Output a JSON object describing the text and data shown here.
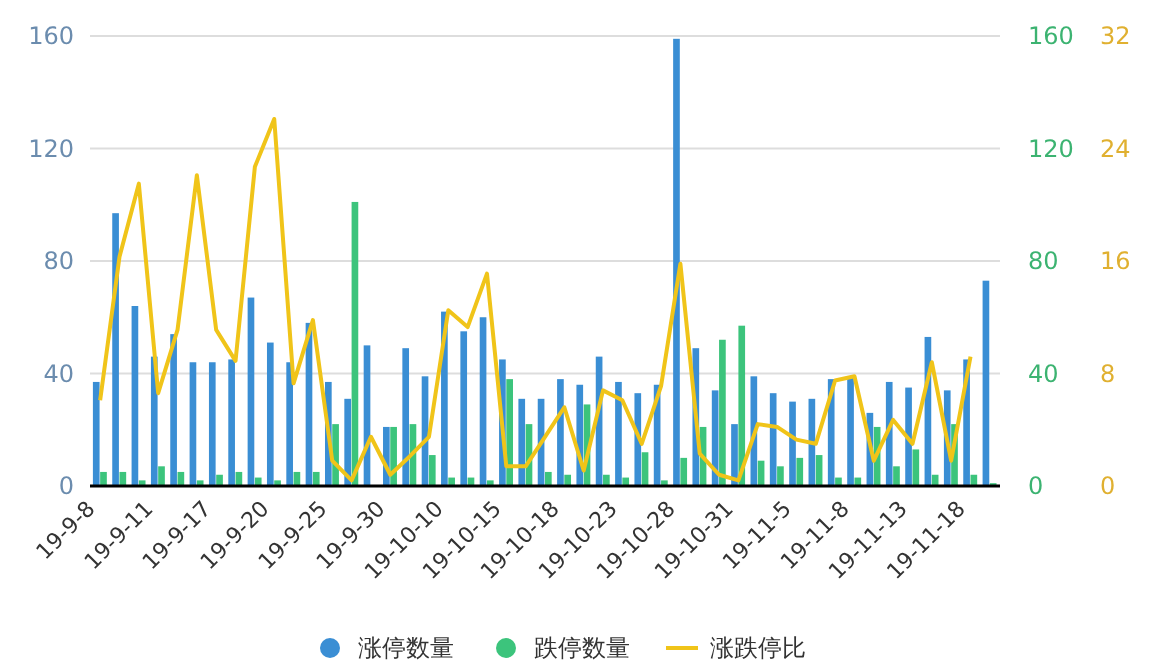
{
  "chart_data": {
    "type": "bar",
    "categories": [
      "19-9-8",
      null,
      null,
      "19-9-11",
      null,
      null,
      "19-9-17",
      null,
      null,
      "19-9-20",
      null,
      null,
      "19-9-25",
      null,
      null,
      "19-9-30",
      null,
      null,
      "19-10-10",
      null,
      null,
      "19-10-15",
      null,
      null,
      "19-10-18",
      null,
      null,
      "19-10-23",
      null,
      null,
      "19-10-28",
      null,
      null,
      "19-10-31",
      null,
      null,
      "19-11-5",
      null,
      null,
      "19-11-8",
      null,
      null,
      "19-11-13",
      null,
      null,
      "19-11-18",
      null
    ],
    "series": [
      {
        "name": "涨停数量",
        "color": "#3a8ed4",
        "values": [
          37,
          97,
          64,
          46,
          54,
          44,
          44,
          45,
          67,
          51,
          44,
          58,
          37,
          31,
          50,
          21,
          49,
          39,
          62,
          55,
          60,
          45,
          31,
          31,
          38,
          36,
          46,
          37,
          33,
          36,
          159,
          49,
          34,
          22,
          39,
          33,
          30,
          31,
          38,
          39,
          26,
          37,
          35,
          53,
          34,
          45,
          73
        ]
      },
      {
        "name": "跌停数量",
        "axis": "y2",
        "color": "#3cc47c",
        "values": [
          5,
          5,
          2,
          7,
          5,
          2,
          4,
          5,
          3,
          2,
          5,
          5,
          22,
          101,
          0,
          21,
          22,
          11,
          3,
          3,
          2,
          38,
          22,
          5,
          4,
          29,
          4,
          3,
          12,
          2,
          10,
          21,
          52,
          57,
          9,
          7,
          10,
          11,
          3,
          3,
          21,
          7,
          13,
          4,
          22,
          4,
          1
        ]
      },
      {
        "name": "涨跌停比",
        "type": "line",
        "axis": "y3",
        "color": "#f0c419",
        "values": [
          6.1,
          16.3,
          21.5,
          6.6,
          11.1,
          22.1,
          11.1,
          8.9,
          22.7,
          26.1,
          7.3,
          11.8,
          1.8,
          0.4,
          3.5,
          0.8,
          2.1,
          3.5,
          12.5,
          11.3,
          15.1,
          1.4,
          1.4,
          3.5,
          5.6,
          1.1,
          6.8,
          6.1,
          3.0,
          7.1,
          15.8,
          2.3,
          0.8,
          0.4,
          4.4,
          4.2,
          3.3,
          3.0,
          7.5,
          7.8,
          1.8,
          4.7,
          3.0,
          8.8,
          1.8,
          9.2,
          null
        ]
      }
    ],
    "ylim": [
      0,
      160
    ],
    "yticks": [
      0,
      40,
      80,
      120,
      160
    ],
    "y2lim": [
      0,
      160
    ],
    "y2ticks": [
      0,
      40,
      80,
      120,
      160
    ],
    "y3lim": [
      0,
      32
    ],
    "y3ticks": [
      0,
      8,
      16,
      24,
      32
    ],
    "grid": "y",
    "legend": "bottom",
    "marker": "none",
    "line_style": "solid"
  }
}
